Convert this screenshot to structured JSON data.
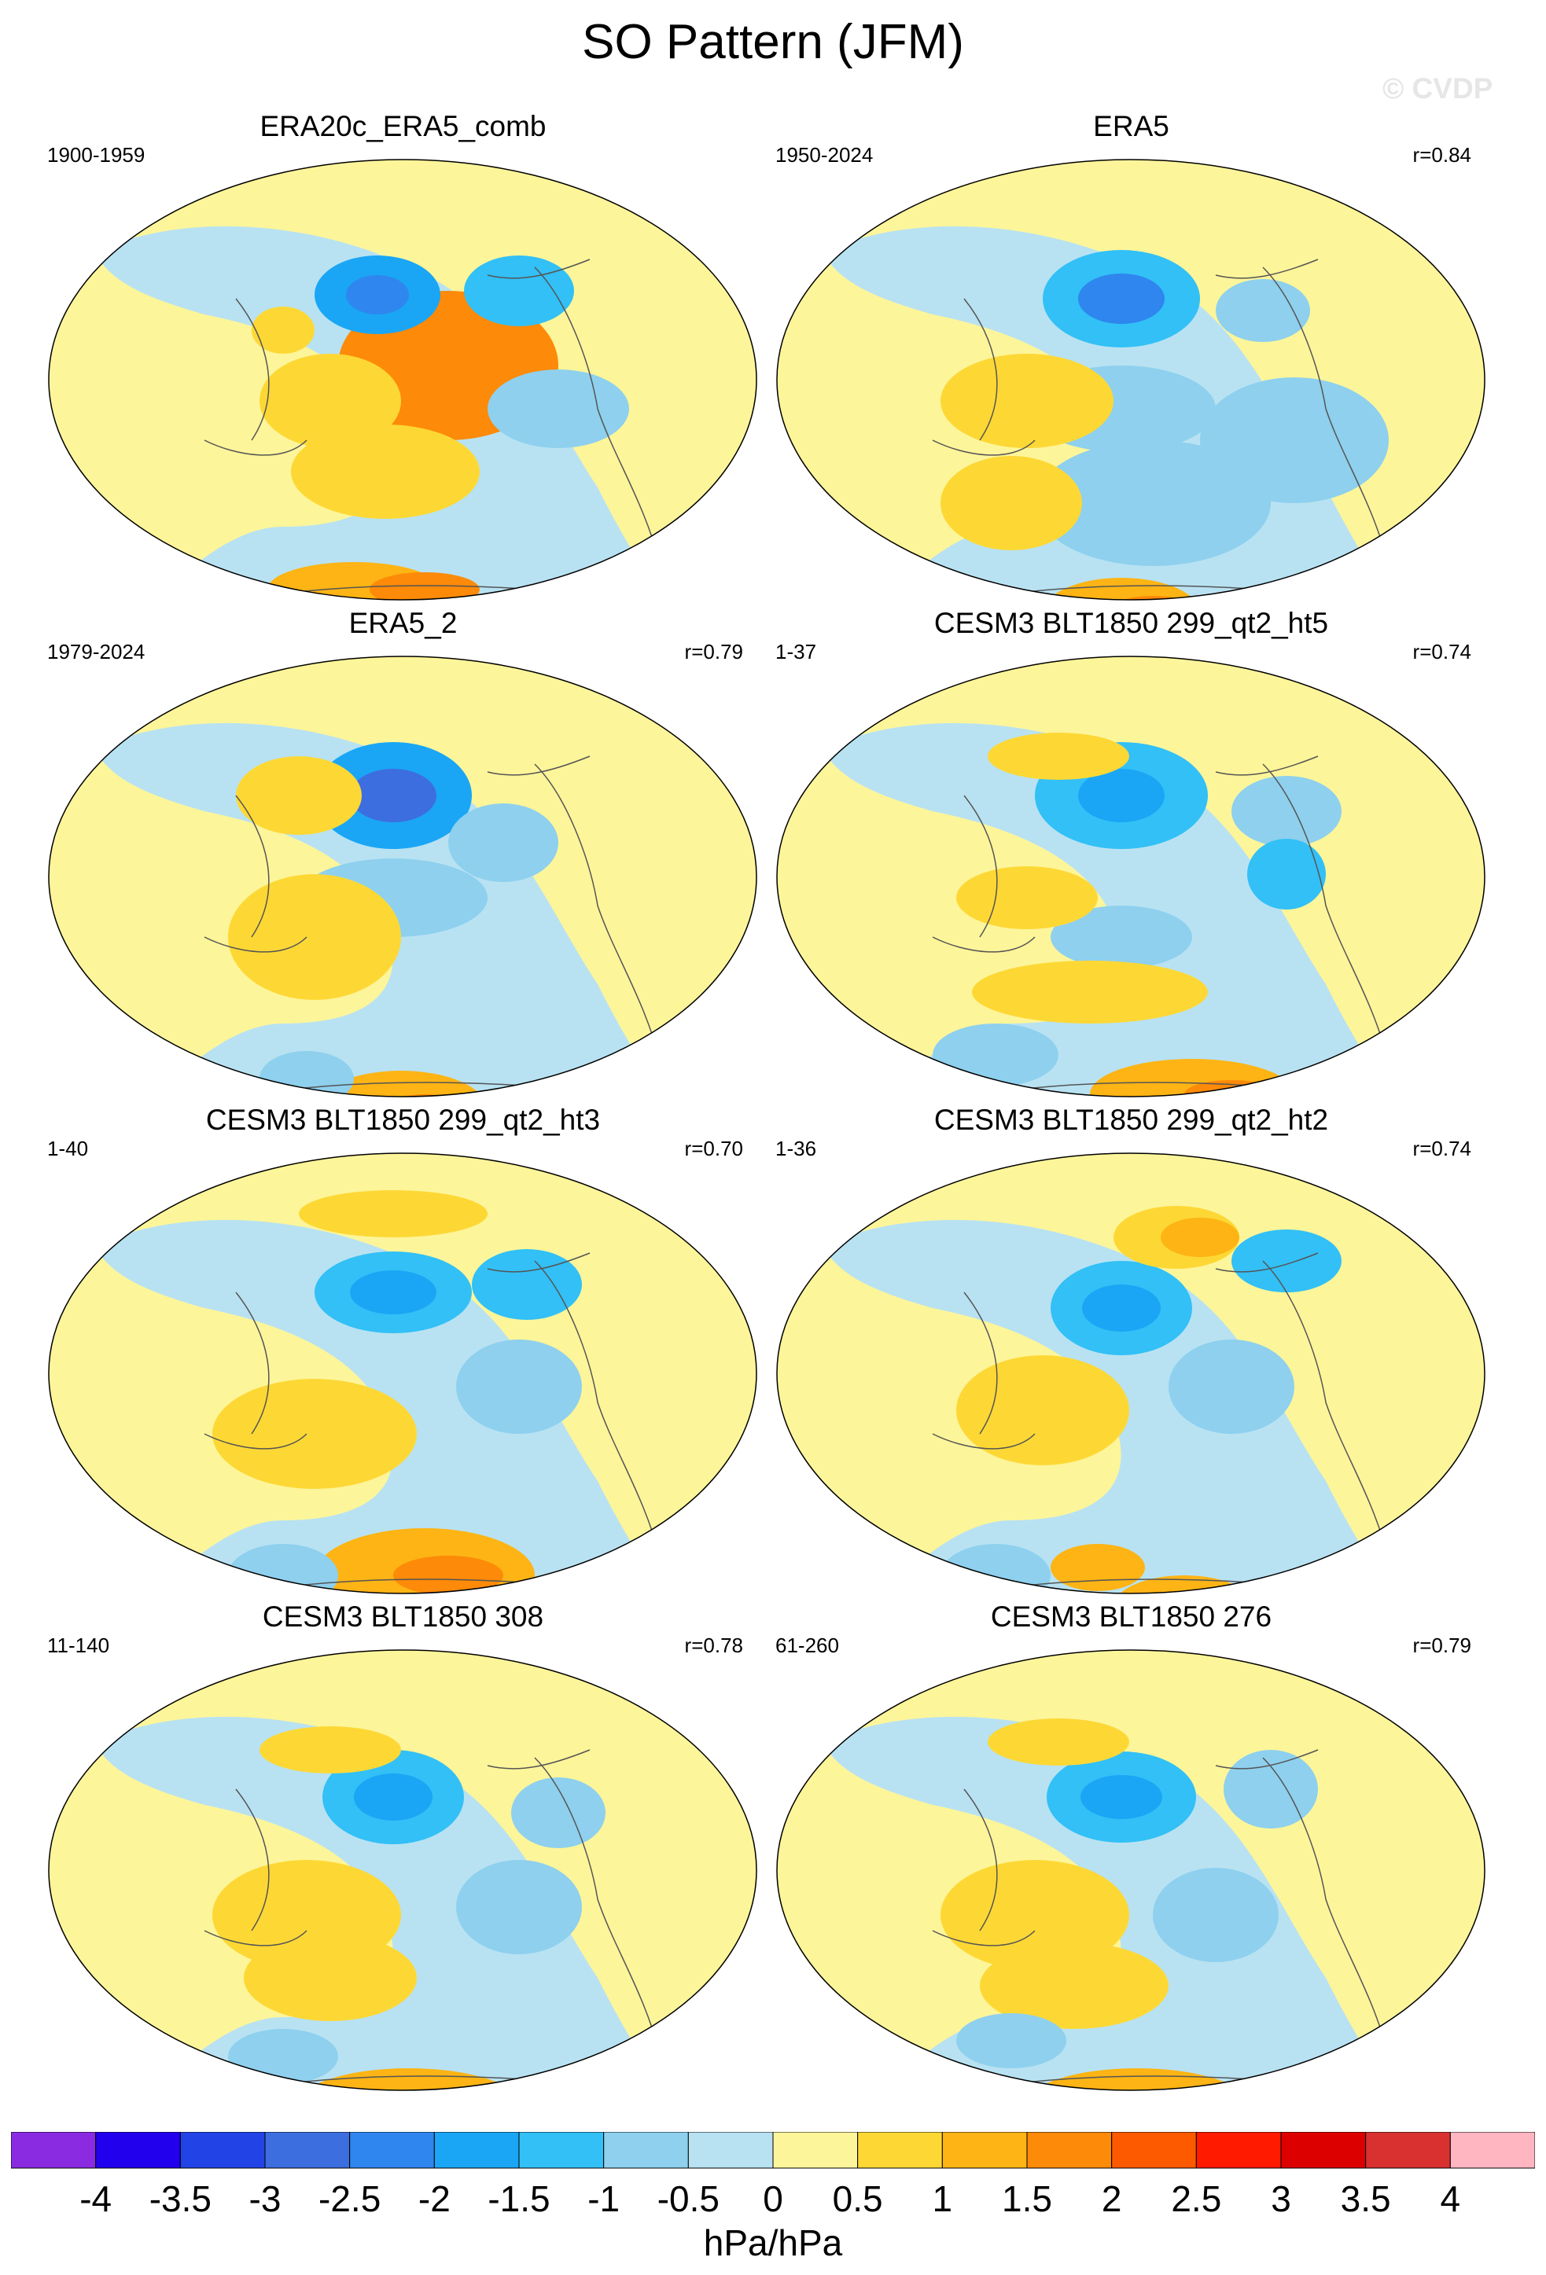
{
  "title": "SO Pattern (JFM)",
  "watermark": "© CVDP",
  "panels": [
    {
      "name": "ERA20c_ERA5_comb",
      "years": "1900-1959",
      "corr": ""
    },
    {
      "name": "ERA5",
      "years": "1950-2024",
      "corr": "r=0.84"
    },
    {
      "name": "ERA5_2",
      "years": "1979-2024",
      "corr": "r=0.79"
    },
    {
      "name": "CESM3 BLT1850 299_qt2_ht5",
      "years": "1-37",
      "corr": "r=0.74"
    },
    {
      "name": "CESM3 BLT1850 299_qt2_ht3",
      "years": "1-40",
      "corr": "r=0.70"
    },
    {
      "name": "CESM3 BLT1850 299_qt2_ht2",
      "years": "1-36",
      "corr": "r=0.74"
    },
    {
      "name": "CESM3 BLT1850 308",
      "years": "11-140",
      "corr": "r=0.78"
    },
    {
      "name": "CESM3 BLT1850 276",
      "years": "61-260",
      "corr": "r=0.79"
    }
  ],
  "colorbar": {
    "units": "hPa/hPa",
    "labels": [
      "-4",
      "-3.5",
      "-3",
      "-2.5",
      "-2",
      "-1.5",
      "-1",
      "-0.5",
      "0",
      "0.5",
      "1",
      "1.5",
      "2",
      "2.5",
      "3",
      "3.5",
      "4"
    ],
    "colors": [
      "#8a2be2",
      "#2200ee",
      "#2244e6",
      "#3d6ee0",
      "#2f86ee",
      "#1aa6f5",
      "#32c0f6",
      "#8ed0ee",
      "#b8e2f2",
      "#fdf59a",
      "#fdd835",
      "#fdb414",
      "#fd8a08",
      "#fd5a00",
      "#ff1a00",
      "#dd0000",
      "#d93030",
      "#ffb6c1"
    ]
  }
}
